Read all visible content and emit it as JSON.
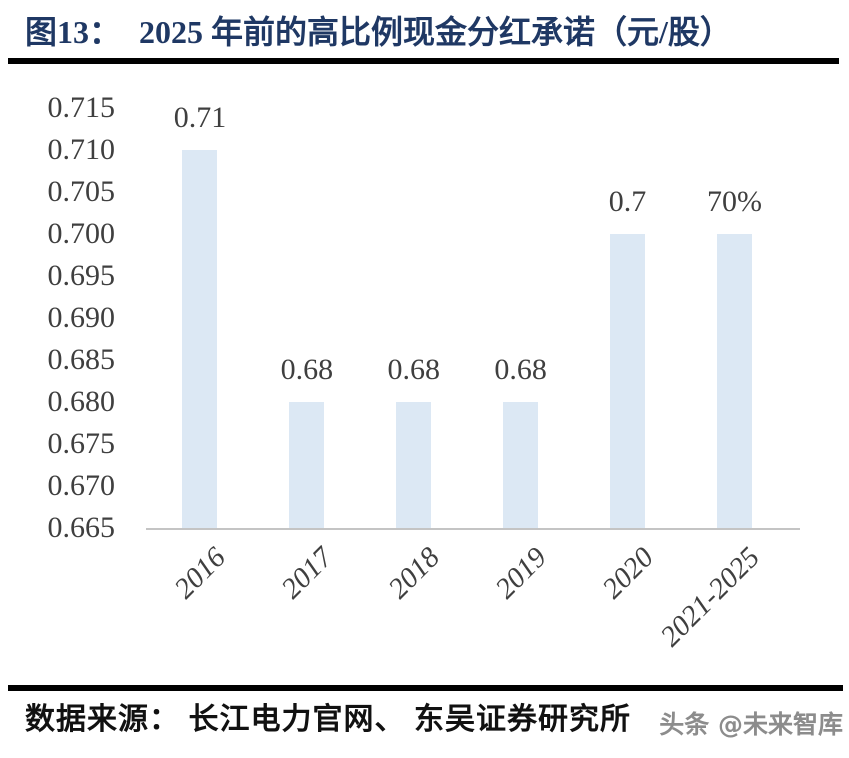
{
  "header": {
    "figure_label": "图13：",
    "title": "2025 年前的高比例现金分红承诺（元/股）",
    "title_color": "#1f3864"
  },
  "chart_data": {
    "type": "bar",
    "title": "2025 年前的高比例现金分红承诺（元/股）",
    "categories": [
      "2016",
      "2017",
      "2018",
      "2019",
      "2020",
      "2021-2025"
    ],
    "values": [
      0.71,
      0.68,
      0.68,
      0.68,
      0.7,
      0.7
    ],
    "value_labels": [
      "0.71",
      "0.68",
      "0.68",
      "0.68",
      "0.7",
      "70%"
    ],
    "xlabel": "",
    "ylabel": "",
    "ylim": [
      0.665,
      0.715
    ],
    "ytick_step": 0.005,
    "ytick_labels": [
      "0.715",
      "0.710",
      "0.705",
      "0.700",
      "0.695",
      "0.690",
      "0.685",
      "0.680",
      "0.675",
      "0.670",
      "0.665"
    ],
    "grid": false,
    "legend": false,
    "bar_color": "#dce8f4",
    "axis_line_color": "#c4c4c4",
    "label_color": "#3f3f3f"
  },
  "footer": {
    "source_text": "数据来源： 长江电力官网、 东吴证券研究所",
    "watermark": "头条 @未来智库"
  }
}
